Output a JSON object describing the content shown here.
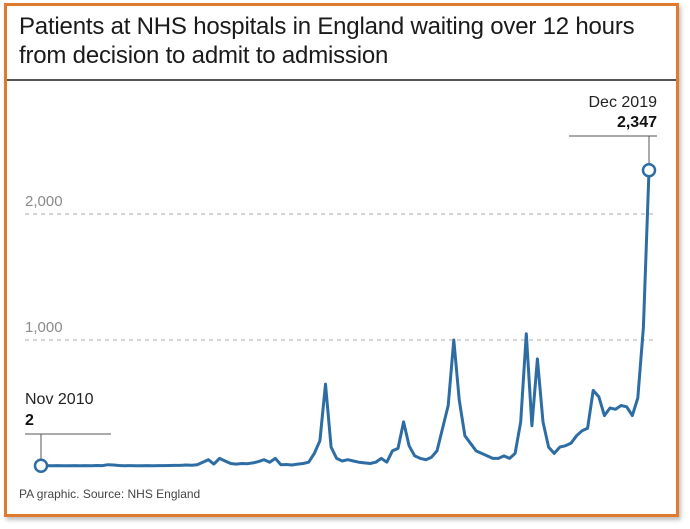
{
  "chart_data": {
    "type": "line",
    "title": "Patients at NHS hospitals in England waiting over 12 hours from decision to admit to admission",
    "xlabel": "",
    "ylabel": "",
    "ylim": [
      0,
      2500
    ],
    "x_range": [
      "Nov 2010",
      "Dec 2019"
    ],
    "y_ticks": [
      {
        "value": 1000,
        "label": "1,000"
      },
      {
        "value": 2000,
        "label": "2,000"
      }
    ],
    "grid": "horizontal dashed",
    "series": [
      {
        "values": [
          2,
          3,
          2,
          3,
          2,
          2,
          3,
          2,
          3,
          2,
          4,
          3,
          10,
          8,
          4,
          2,
          3,
          2,
          2,
          3,
          2,
          3,
          3,
          4,
          5,
          5,
          8,
          6,
          10,
          30,
          50,
          15,
          60,
          40,
          20,
          15,
          20,
          18,
          25,
          35,
          50,
          30,
          60,
          10,
          12,
          8,
          15,
          20,
          30,
          100,
          200,
          650,
          150,
          60,
          40,
          50,
          40,
          30,
          25,
          20,
          30,
          60,
          30,
          120,
          140,
          350,
          160,
          80,
          60,
          50,
          70,
          120,
          300,
          480,
          1000,
          520,
          240,
          180,
          120,
          100,
          80,
          60,
          60,
          80,
          60,
          100,
          350,
          1050,
          320,
          850,
          350,
          150,
          100,
          150,
          160,
          180,
          240,
          280,
          300,
          600,
          550,
          400,
          460,
          450,
          480,
          470,
          400,
          540,
          1100,
          2347
        ],
        "color": "#2e6da4"
      }
    ],
    "annotations": [
      {
        "point": "first",
        "label": "Nov 2010",
        "value_label": "2"
      },
      {
        "point": "last",
        "label": "Dec 2019",
        "value_label": "2,347"
      }
    ]
  },
  "source": "PA graphic. Source: NHS England"
}
